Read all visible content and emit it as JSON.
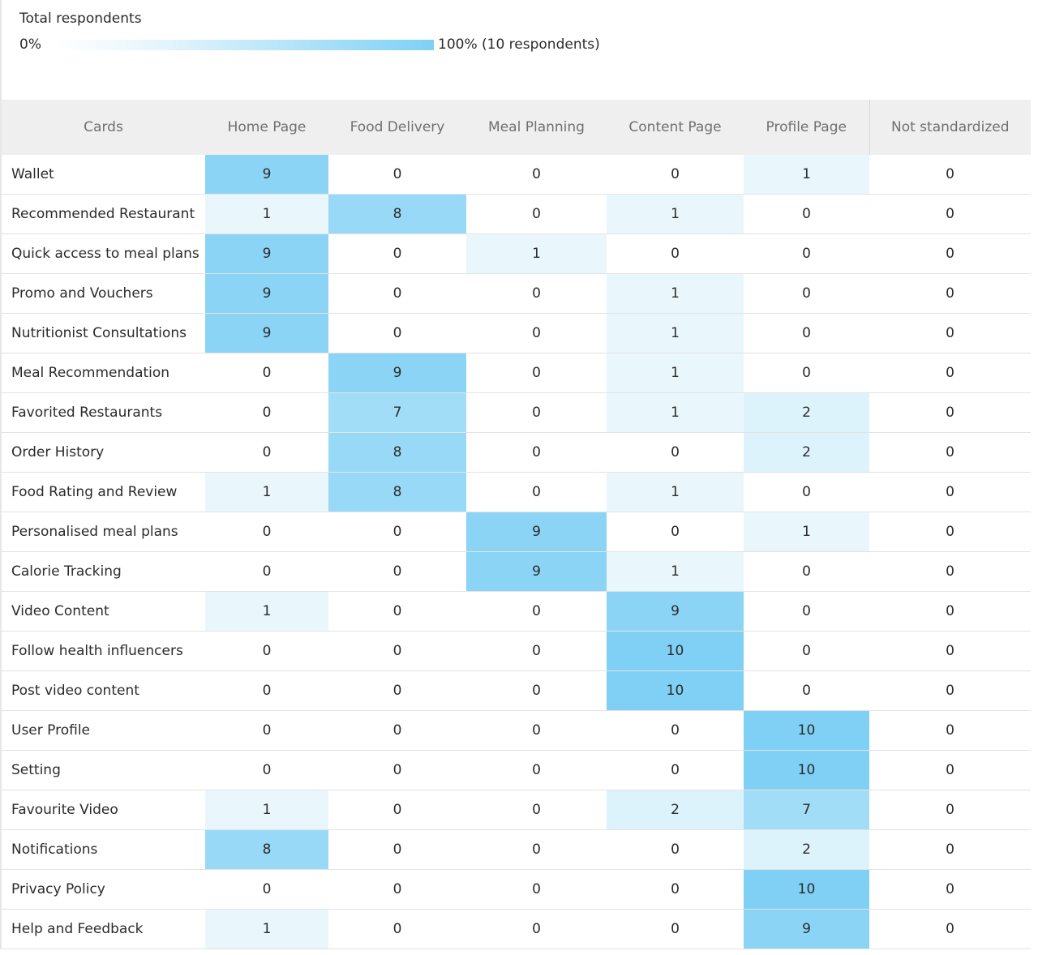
{
  "legend": {
    "title": "Total respondents",
    "min_label": "0%",
    "max_label": "100% (10 respondents)"
  },
  "colors": {
    "heat_max": "#7fd0f4",
    "heat_min": "#ffffff",
    "header_bg": "#efefef",
    "header_text": "#707070",
    "grid_line": "#e3e3e3"
  },
  "chart_data": {
    "type": "heatmap",
    "total_respondents": 10,
    "row_header": "Cards",
    "columns": [
      "Home Page",
      "Food Delivery",
      "Meal Planning",
      "Content Page",
      "Profile Page",
      "Not standardized"
    ],
    "rows": [
      {
        "label": "Wallet",
        "values": [
          9,
          0,
          0,
          0,
          1,
          0
        ]
      },
      {
        "label": "Recommended Restaurant",
        "values": [
          1,
          8,
          0,
          1,
          0,
          0
        ]
      },
      {
        "label": "Quick access to meal plans",
        "values": [
          9,
          0,
          1,
          0,
          0,
          0
        ]
      },
      {
        "label": "Promo and Vouchers",
        "values": [
          9,
          0,
          0,
          1,
          0,
          0
        ]
      },
      {
        "label": "Nutritionist Consultations",
        "values": [
          9,
          0,
          0,
          1,
          0,
          0
        ]
      },
      {
        "label": "Meal Recommendation",
        "values": [
          0,
          9,
          0,
          1,
          0,
          0
        ]
      },
      {
        "label": "Favorited Restaurants",
        "values": [
          0,
          7,
          0,
          1,
          2,
          0
        ]
      },
      {
        "label": "Order History",
        "values": [
          0,
          8,
          0,
          0,
          2,
          0
        ]
      },
      {
        "label": "Food Rating and Review",
        "values": [
          1,
          8,
          0,
          1,
          0,
          0
        ]
      },
      {
        "label": "Personalised meal plans",
        "values": [
          0,
          0,
          9,
          0,
          1,
          0
        ]
      },
      {
        "label": "Calorie Tracking",
        "values": [
          0,
          0,
          9,
          1,
          0,
          0
        ]
      },
      {
        "label": "Video Content",
        "values": [
          1,
          0,
          0,
          9,
          0,
          0
        ]
      },
      {
        "label": "Follow health influencers",
        "values": [
          0,
          0,
          0,
          10,
          0,
          0
        ]
      },
      {
        "label": "Post video content",
        "values": [
          0,
          0,
          0,
          10,
          0,
          0
        ]
      },
      {
        "label": "User Profile",
        "values": [
          0,
          0,
          0,
          0,
          10,
          0
        ]
      },
      {
        "label": "Setting",
        "values": [
          0,
          0,
          0,
          0,
          10,
          0
        ]
      },
      {
        "label": "Favourite Video",
        "values": [
          1,
          0,
          0,
          2,
          7,
          0
        ]
      },
      {
        "label": "Notifications",
        "values": [
          8,
          0,
          0,
          0,
          2,
          0
        ]
      },
      {
        "label": "Privacy Policy",
        "values": [
          0,
          0,
          0,
          0,
          10,
          0
        ]
      },
      {
        "label": "Help and Feedback",
        "values": [
          1,
          0,
          0,
          0,
          9,
          0
        ]
      }
    ]
  }
}
